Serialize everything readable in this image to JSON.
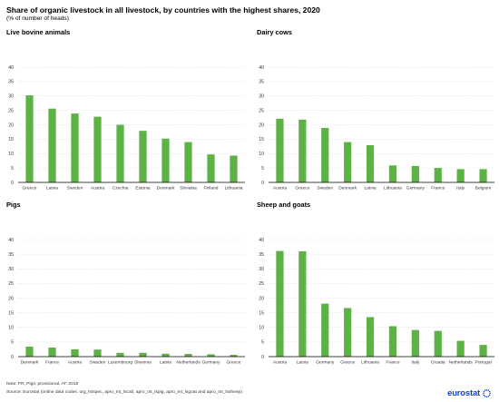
{
  "title": "Share of organic livestock in all livestock, by countries with the highest shares, 2020",
  "subtitle": "(% of number of heads)",
  "note": "Note: FR, Pigs: provisional. AT: 2019",
  "source": "Source: Eurostat (online data codes: org_lstspec, apro_mt_lscatl, apro_mt_lspig, apro_mt_lsgoat and apro_mt_lssheep)",
  "logo": "eurostat",
  "colors": {
    "bar": "#5cb344",
    "logo": "#0e47cb"
  },
  "chart_data": [
    {
      "type": "bar",
      "title": "Live bovine animals",
      "categories": [
        "Greece",
        "Latvia",
        "Sweden",
        "Austria",
        "Czechia",
        "Estonia",
        "Denmark",
        "Slovakia",
        "Finland",
        "Lithuania"
      ],
      "values": [
        30.2,
        25.6,
        23.9,
        22.8,
        20.0,
        17.9,
        15.2,
        14.0,
        9.7,
        9.3
      ],
      "ylim": [
        0,
        40
      ],
      "yticks": [
        0,
        5,
        10,
        15,
        20,
        25,
        30,
        35,
        40
      ],
      "grid": true
    },
    {
      "type": "bar",
      "title": "Dairy cows",
      "categories": [
        "Austria",
        "Greece",
        "Sweden",
        "Denmark",
        "Latvia",
        "Lithuania",
        "Germany",
        "France",
        "Italy",
        "Belgium"
      ],
      "values": [
        22.1,
        21.8,
        18.9,
        14.0,
        12.9,
        5.9,
        5.7,
        5.0,
        4.6,
        4.6
      ],
      "ylim": [
        0,
        40
      ],
      "yticks": [
        0,
        5,
        10,
        15,
        20,
        25,
        30,
        35,
        40
      ],
      "grid": true
    },
    {
      "type": "bar",
      "title": "Pigs",
      "categories": [
        "Denmark",
        "France",
        "Austria",
        "Sweden",
        "Luxembourg",
        "Slovenia",
        "Latvia",
        "Netherlands",
        "Germany",
        "Greece"
      ],
      "values": [
        3.4,
        3.1,
        2.5,
        2.4,
        1.3,
        1.3,
        1.0,
        0.9,
        0.8,
        0.6
      ],
      "ylim": [
        0,
        40
      ],
      "yticks": [
        0,
        5,
        10,
        15,
        20,
        25,
        30,
        35,
        40
      ],
      "grid": true
    },
    {
      "type": "bar",
      "title": "Sheep and goats",
      "categories": [
        "Austria",
        "Latvia",
        "Germany",
        "Greece",
        "Lithuania",
        "France",
        "Italy",
        "Croatia",
        "Netherlands",
        "Portugal"
      ],
      "values": [
        36.1,
        36.0,
        18.1,
        16.6,
        13.5,
        10.4,
        9.1,
        8.8,
        5.4,
        4.0
      ],
      "ylim": [
        0,
        40
      ],
      "yticks": [
        0,
        5,
        10,
        15,
        20,
        25,
        30,
        35,
        40
      ],
      "grid": true
    }
  ]
}
